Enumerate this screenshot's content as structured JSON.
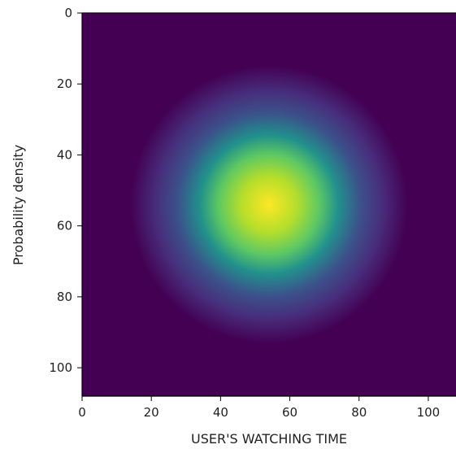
{
  "chart_data": {
    "type": "heatmap",
    "title": "",
    "xlabel": "USER'S WATCHING TIME",
    "ylabel": "Probability density",
    "xlim": [
      0,
      108
    ],
    "ylim": [
      108,
      0
    ],
    "x_ticks": [
      0,
      20,
      40,
      60,
      80,
      100
    ],
    "y_ticks": [
      0,
      20,
      40,
      60,
      80,
      100
    ],
    "x_tick_labels": [
      "0",
      "20",
      "40",
      "60",
      "80",
      "100"
    ],
    "y_tick_labels": [
      "0",
      "20",
      "40",
      "60",
      "80",
      "100"
    ],
    "colormap": "viridis",
    "colormap_stops": [
      "#440154",
      "#3b528b",
      "#21918c",
      "#5ec962",
      "#fde725"
    ],
    "grid": false,
    "gaussian_peak": {
      "center_x": 54,
      "center_y": 54,
      "sigma": 10,
      "peak_value": 1.0,
      "background_value": 0.0
    }
  }
}
